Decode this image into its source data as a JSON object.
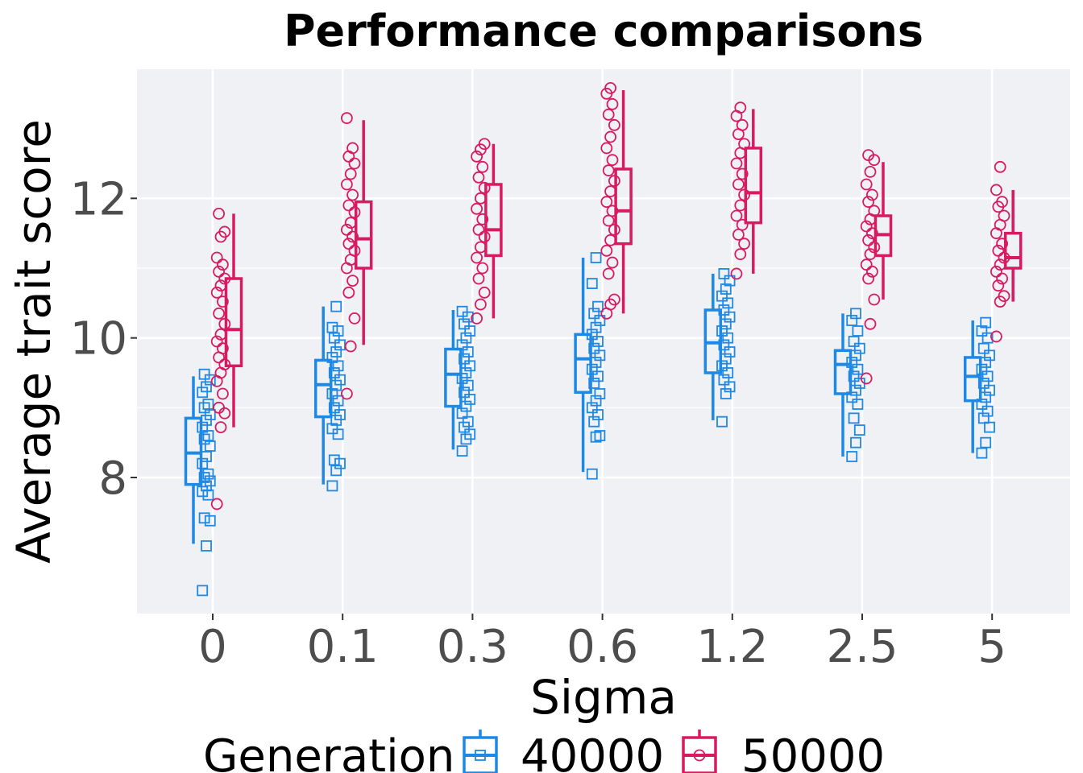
{
  "chart_data": {
    "type": "box",
    "title": "Performance comparisons",
    "xlabel": "Sigma",
    "ylabel": "Average trait score",
    "categories": [
      "0",
      "0.1",
      "0.3",
      "0.6",
      "1.2",
      "2.5",
      "5"
    ],
    "ylim": [
      6.05,
      13.85
    ],
    "yticks": [
      8,
      10,
      12
    ],
    "grid": true,
    "legend": {
      "title": "Generation",
      "position": "bottom",
      "entries": [
        "40000",
        "50000"
      ]
    },
    "series": [
      {
        "name": "40000",
        "color": "#1e88e5",
        "marker": "square",
        "boxes": [
          {
            "min": 7.05,
            "q1": 7.9,
            "median": 8.35,
            "q3": 8.85,
            "max": 9.45
          },
          {
            "min": 7.9,
            "q1": 8.87,
            "median": 9.33,
            "q3": 9.68,
            "max": 10.45
          },
          {
            "min": 8.4,
            "q1": 9.02,
            "median": 9.48,
            "q3": 9.84,
            "max": 10.4
          },
          {
            "min": 8.08,
            "q1": 9.22,
            "median": 9.7,
            "q3": 10.05,
            "max": 11.15
          },
          {
            "min": 8.82,
            "q1": 9.5,
            "median": 9.93,
            "q3": 10.4,
            "max": 10.92
          },
          {
            "min": 8.3,
            "q1": 9.2,
            "median": 9.62,
            "q3": 9.82,
            "max": 10.35
          },
          {
            "min": 8.35,
            "q1": 9.1,
            "median": 9.45,
            "q3": 9.72,
            "max": 10.25
          }
        ],
        "points": [
          [
            6.38,
            7.02,
            7.38,
            7.42,
            7.75,
            7.8,
            7.88,
            7.95,
            8.0,
            8.05,
            8.2,
            8.3,
            8.45,
            8.55,
            8.6,
            8.72,
            8.82,
            8.9,
            9.0,
            9.05,
            9.22,
            9.3,
            9.4,
            9.48
          ],
          [
            7.88,
            8.1,
            8.2,
            8.25,
            8.62,
            8.7,
            8.82,
            8.9,
            9.0,
            9.1,
            9.2,
            9.32,
            9.4,
            9.5,
            9.6,
            9.72,
            9.8,
            9.9,
            10.0,
            10.1,
            10.15,
            10.45
          ],
          [
            8.38,
            8.55,
            8.62,
            8.72,
            8.8,
            8.92,
            9.02,
            9.12,
            9.22,
            9.32,
            9.42,
            9.5,
            9.6,
            9.7,
            9.8,
            9.9,
            10.0,
            10.1,
            10.2,
            10.3,
            10.38
          ],
          [
            8.05,
            8.58,
            8.6,
            8.8,
            8.9,
            9.0,
            9.1,
            9.2,
            9.35,
            9.45,
            9.55,
            9.65,
            9.75,
            9.85,
            9.95,
            10.05,
            10.15,
            10.25,
            10.35,
            10.45,
            10.78,
            11.15
          ],
          [
            8.8,
            9.2,
            9.3,
            9.4,
            9.5,
            9.6,
            9.7,
            9.8,
            9.9,
            10.0,
            10.1,
            10.2,
            10.3,
            10.4,
            10.5,
            10.6,
            10.7,
            10.82,
            10.92
          ],
          [
            8.3,
            8.5,
            8.68,
            8.85,
            9.05,
            9.15,
            9.25,
            9.35,
            9.45,
            9.55,
            9.65,
            9.75,
            9.85,
            9.95,
            10.1,
            10.25,
            10.35
          ],
          [
            8.35,
            8.5,
            8.72,
            8.85,
            8.95,
            9.05,
            9.15,
            9.25,
            9.35,
            9.45,
            9.55,
            9.65,
            9.75,
            9.85,
            10.0,
            10.1,
            10.22
          ]
        ]
      },
      {
        "name": "50000",
        "color": "#d81b60",
        "marker": "circle",
        "boxes": [
          {
            "min": 8.72,
            "q1": 9.6,
            "median": 10.12,
            "q3": 10.85,
            "max": 11.78
          },
          {
            "min": 9.9,
            "q1": 11.0,
            "median": 11.42,
            "q3": 11.95,
            "max": 13.12
          },
          {
            "min": 10.28,
            "q1": 11.18,
            "median": 11.55,
            "q3": 12.2,
            "max": 12.78
          },
          {
            "min": 10.35,
            "q1": 11.35,
            "median": 11.82,
            "q3": 12.42,
            "max": 13.55
          },
          {
            "min": 10.92,
            "q1": 11.65,
            "median": 12.08,
            "q3": 12.72,
            "max": 13.28
          },
          {
            "min": 10.55,
            "q1": 11.18,
            "median": 11.48,
            "q3": 11.75,
            "max": 12.52
          },
          {
            "min": 10.52,
            "q1": 11.0,
            "median": 11.15,
            "q3": 11.5,
            "max": 12.12
          }
        ],
        "points": [
          [
            7.62,
            8.72,
            8.92,
            9.0,
            9.2,
            9.38,
            9.5,
            9.62,
            9.72,
            9.85,
            9.95,
            10.05,
            10.2,
            10.35,
            10.52,
            10.65,
            10.75,
            10.85,
            10.95,
            11.05,
            11.15,
            11.45,
            11.52,
            11.78
          ],
          [
            9.2,
            9.88,
            10.28,
            10.65,
            10.82,
            11.0,
            11.12,
            11.25,
            11.35,
            11.45,
            11.55,
            11.65,
            11.8,
            11.9,
            12.05,
            12.2,
            12.35,
            12.5,
            12.6,
            12.72,
            13.15
          ],
          [
            10.28,
            10.48,
            10.65,
            10.85,
            11.0,
            11.15,
            11.3,
            11.45,
            11.55,
            11.7,
            11.85,
            12.0,
            12.15,
            12.3,
            12.45,
            12.6,
            12.7,
            12.78
          ],
          [
            10.35,
            10.48,
            10.55,
            10.92,
            11.08,
            11.25,
            11.4,
            11.55,
            11.68,
            11.82,
            11.95,
            12.1,
            12.25,
            12.4,
            12.55,
            12.72,
            12.88,
            13.05,
            13.2,
            13.35,
            13.5,
            13.58
          ],
          [
            10.92,
            11.2,
            11.35,
            11.48,
            11.62,
            11.75,
            11.9,
            12.05,
            12.2,
            12.35,
            12.5,
            12.65,
            12.78,
            12.92,
            13.05,
            13.18,
            13.3
          ],
          [
            9.42,
            10.2,
            10.55,
            10.85,
            10.95,
            11.05,
            11.2,
            11.3,
            11.4,
            11.5,
            11.6,
            11.7,
            11.82,
            11.95,
            12.05,
            12.2,
            12.38,
            12.55,
            12.62
          ],
          [
            10.02,
            10.52,
            10.6,
            10.75,
            10.85,
            10.95,
            11.05,
            11.15,
            11.25,
            11.35,
            11.5,
            11.62,
            11.75,
            11.88,
            11.95,
            12.12,
            12.45
          ]
        ]
      }
    ]
  }
}
